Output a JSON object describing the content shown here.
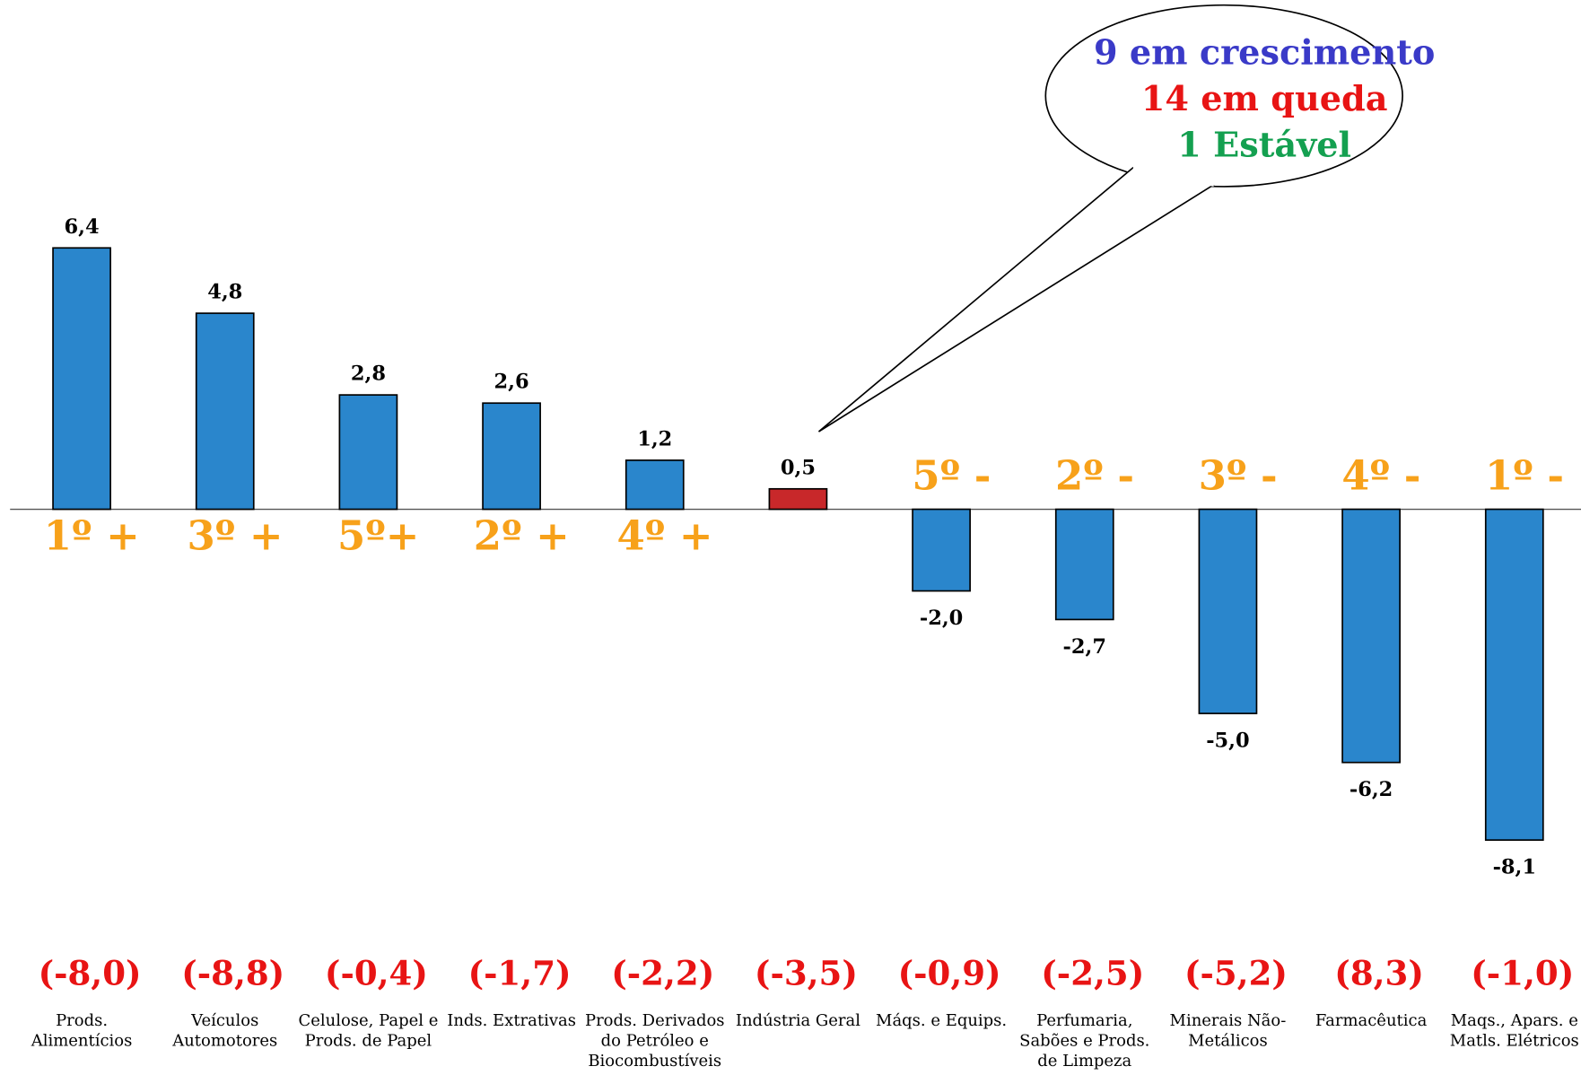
{
  "chart_data": {
    "type": "bar",
    "categories": [
      "Prods. Alimentícios",
      "Veículos Automotores",
      "Celulose, Papel e Prods. de Papel",
      "Inds. Extrativas",
      "Prods. Derivados do Petróleo e Biocombustíveis",
      "Indústria Geral",
      "Máqs. e Equips.",
      "Perfumaria, Sabões e Prods. de Limpeza",
      "Minerais Não-Metálicos",
      "Farmacêutica",
      "Maqs., Apars. e Matls. Elétricos"
    ],
    "values": [
      6.4,
      4.8,
      2.8,
      2.6,
      1.2,
      0.5,
      -2.0,
      -2.7,
      -5.0,
      -6.2,
      -8.1
    ],
    "value_labels": [
      "6,4",
      "4,8",
      "2,8",
      "2,6",
      "1,2",
      "0,5",
      "-2,0",
      "-2,7",
      "-5,0",
      "-6,2",
      "-8,1"
    ],
    "colors": [
      "#2a86cc",
      "#2a86cc",
      "#2a86cc",
      "#2a86cc",
      "#2a86cc",
      "#c8282a",
      "#2a86cc",
      "#2a86cc",
      "#2a86cc",
      "#2a86cc",
      "#2a86cc"
    ],
    "rank_labels": [
      "1º +",
      "3º +",
      "5º+",
      "2º +",
      "4º +",
      null,
      "5º -",
      "2º -",
      "3º -",
      "4º -",
      "1º -"
    ],
    "secondary_labels": [
      "(-8,0)",
      "(-8,8)",
      "(-0,4)",
      "(-1,7)",
      "(-2,2)",
      "(-3,5)",
      "(-0,9)",
      "(-2,5)",
      "(-5,2)",
      "(8,3)",
      "(-1,0)"
    ],
    "callout": [
      {
        "text": "9 em crescimento",
        "color": "#3a3ac8"
      },
      {
        "text": "14 em queda",
        "color": "#e81414"
      },
      {
        "text": "1 Estável",
        "color": "#14a050"
      }
    ],
    "ylim": [
      -9,
      7
    ]
  }
}
